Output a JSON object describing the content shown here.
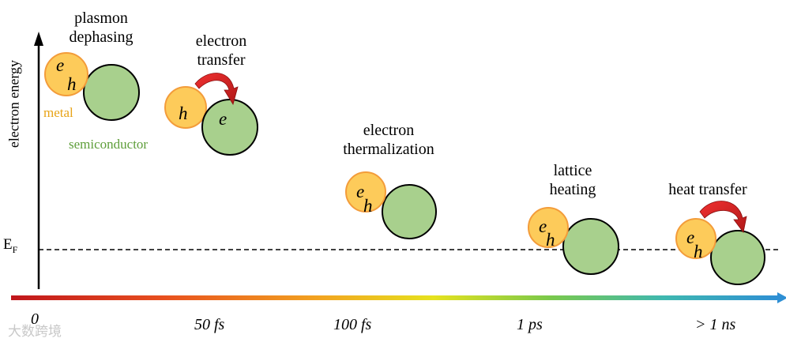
{
  "axis": {
    "ylabel": "electron energy",
    "fermi_level": "E",
    "fermi_sub": "F"
  },
  "timeline": {
    "ticks": [
      "0",
      "50 fs",
      "100 fs",
      "1 ps",
      "> 1 ns"
    ]
  },
  "stages": {
    "plasmon": {
      "line1": "plasmon",
      "line2": "dephasing"
    },
    "transfer": {
      "line1": "electron",
      "line2": "transfer"
    },
    "thermal": {
      "line1": "electron",
      "line2": "thermalization"
    },
    "lattice": {
      "line1": "lattice",
      "line2": "heating"
    },
    "heat": {
      "line1": "heat transfer"
    }
  },
  "legend": {
    "metal": "metal",
    "semiconductor": "semiconductor"
  },
  "carriers": {
    "electron": "e",
    "hole": "h"
  },
  "colors": {
    "metal_fill": "#FDCB5A",
    "metal_stroke": "#F39C3A",
    "semi_fill": "#A8D08D",
    "metal_text": "#E8A317",
    "semi_text": "#5E9E3A",
    "arrow": "#E02020"
  },
  "watermark": "大数跨境"
}
